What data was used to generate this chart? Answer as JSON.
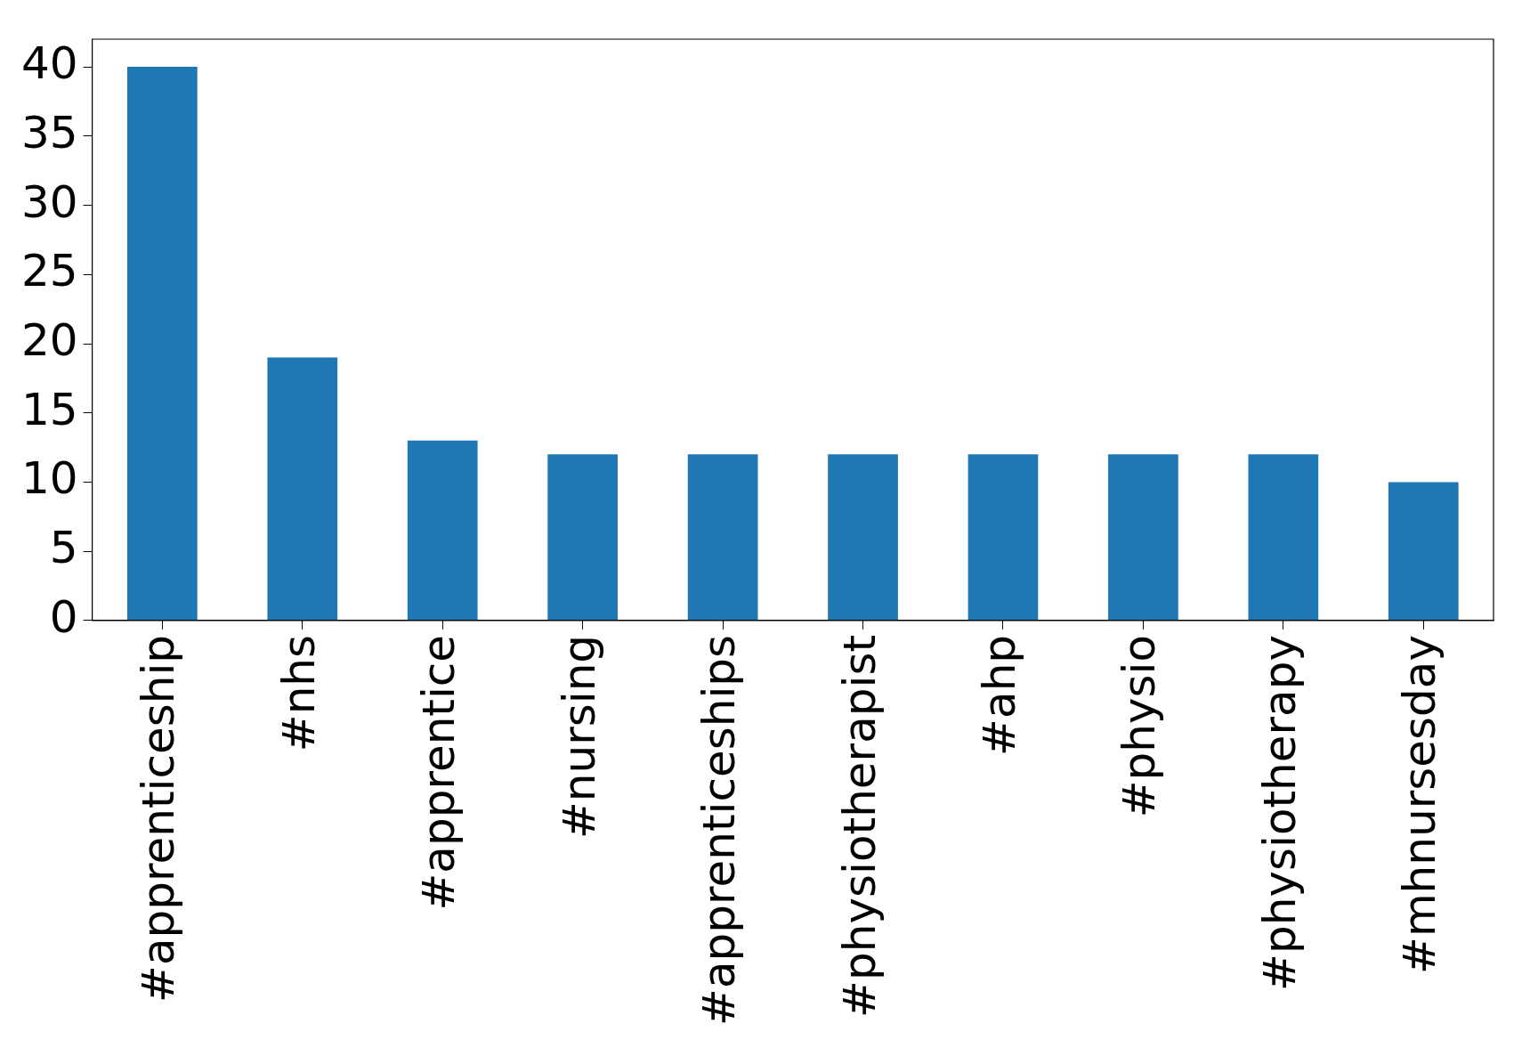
{
  "chart_data": {
    "type": "bar",
    "categories": [
      "#apprenticeship",
      "#nhs",
      "#apprentice",
      "#nursing",
      "#apprenticeships",
      "#physiotherapist",
      "#ahp",
      "#physio",
      "#physiotherapy",
      "#mhnursesday"
    ],
    "values": [
      40,
      19,
      13,
      12,
      12,
      12,
      12,
      12,
      12,
      10
    ],
    "color": "#1f77b4",
    "ylim": [
      0,
      42
    ],
    "yticks": [
      0,
      5,
      10,
      15,
      20,
      25,
      30,
      35,
      40
    ],
    "grid": false,
    "legend": false
  }
}
